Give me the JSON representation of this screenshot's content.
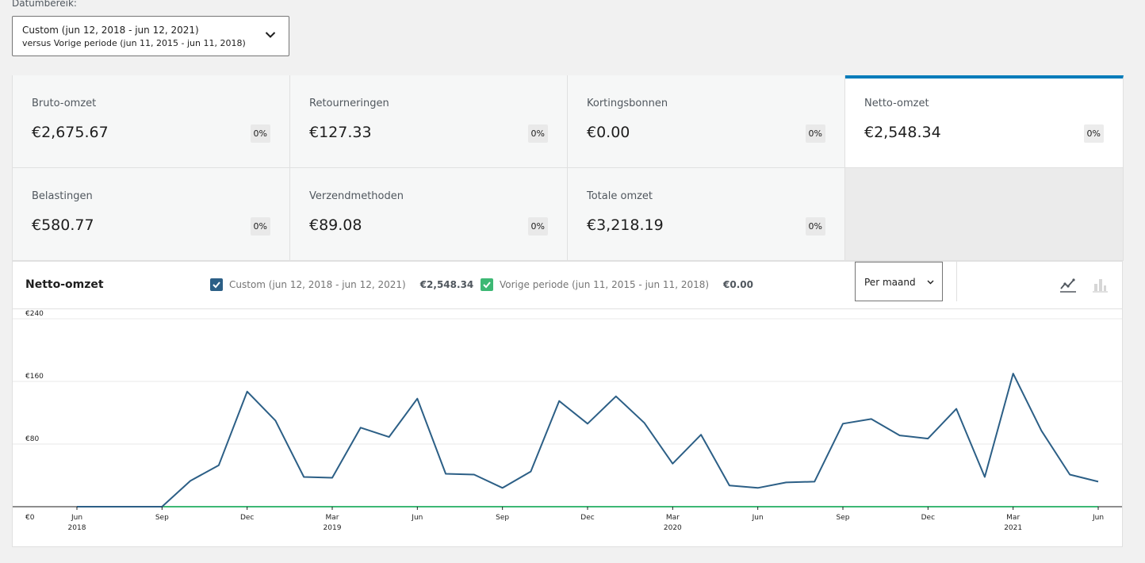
{
  "date_range": {
    "label": "Datumbereik:",
    "primary": "Custom (jun 12, 2018 - jun 12, 2021)",
    "secondary": "versus Vorige periode (jun 11, 2015 - jun 11, 2018)",
    "icon": "chevron-down-icon"
  },
  "summary": [
    {
      "label": "Bruto-omzet",
      "value": "€2,675.67",
      "delta": "0%"
    },
    {
      "label": "Retourneringen",
      "value": "€127.33",
      "delta": "0%"
    },
    {
      "label": "Kortingsbonnen",
      "value": "€0.00",
      "delta": "0%"
    },
    {
      "label": "Netto-omzet",
      "value": "€2,548.34",
      "delta": "0%",
      "selected": true
    },
    {
      "label": "Belastingen",
      "value": "€580.77",
      "delta": "0%"
    },
    {
      "label": "Verzendmethoden",
      "value": "€89.08",
      "delta": "0%"
    },
    {
      "label": "Totale omzet",
      "value": "€3,218.19",
      "delta": "0%"
    }
  ],
  "chart": {
    "title": "Netto-omzet",
    "legend": [
      {
        "name": "Custom (jun 12, 2018 - jun 12, 2021)",
        "total": "€2,548.34",
        "color": "#2c5f86",
        "checked": true
      },
      {
        "name": "Vorige periode (jun 11, 2015 - jun 11, 2018)",
        "total": "€0.00",
        "color": "#3db874",
        "checked": true
      }
    ],
    "interval": "Per maand",
    "chart_type_buttons": [
      {
        "name": "line-chart-icon",
        "active": true
      },
      {
        "name": "bar-chart-icon",
        "active": false
      }
    ]
  },
  "chart_data": {
    "type": "line",
    "title": "Netto-omzet",
    "ylim": [
      0,
      240
    ],
    "y_ticks": [
      "€0",
      "€80",
      "€160",
      "€240"
    ],
    "y_tick_values": [
      0,
      80,
      160,
      240
    ],
    "x_ticks": [
      {
        "month": "Jun",
        "year": "2018",
        "index": 0
      },
      {
        "month": "Sep",
        "year": "",
        "index": 3
      },
      {
        "month": "Dec",
        "year": "",
        "index": 6
      },
      {
        "month": "Mar",
        "year": "2019",
        "index": 9
      },
      {
        "month": "Jun",
        "year": "",
        "index": 12
      },
      {
        "month": "Sep",
        "year": "",
        "index": 15
      },
      {
        "month": "Dec",
        "year": "",
        "index": 18
      },
      {
        "month": "Mar",
        "year": "2020",
        "index": 21
      },
      {
        "month": "Jun",
        "year": "",
        "index": 24
      },
      {
        "month": "Sep",
        "year": "",
        "index": 27
      },
      {
        "month": "Dec",
        "year": "",
        "index": 30
      },
      {
        "month": "Mar",
        "year": "2021",
        "index": 33
      },
      {
        "month": "Jun",
        "year": "",
        "index": 36
      }
    ],
    "series": [
      {
        "name": "Custom (jun 12, 2018 - jun 12, 2021)",
        "color": "#2c5f86",
        "values": [
          0,
          0,
          0,
          0,
          33,
          53,
          147,
          110,
          38,
          37,
          101,
          89,
          138,
          42,
          41,
          24,
          45,
          135,
          106,
          141,
          107,
          55,
          92,
          27,
          24,
          31,
          32,
          106,
          112,
          91,
          87,
          125,
          38,
          170,
          97,
          41,
          32
        ]
      },
      {
        "name": "Vorige periode (jun 11, 2015 - jun 11, 2018)",
        "color": "#3db874",
        "values": [
          0,
          0,
          0,
          0,
          0,
          0,
          0,
          0,
          0,
          0,
          0,
          0,
          0,
          0,
          0,
          0,
          0,
          0,
          0,
          0,
          0,
          0,
          0,
          0,
          0,
          0,
          0,
          0,
          0,
          0,
          0,
          0,
          0,
          0,
          0,
          0,
          0
        ]
      }
    ]
  }
}
